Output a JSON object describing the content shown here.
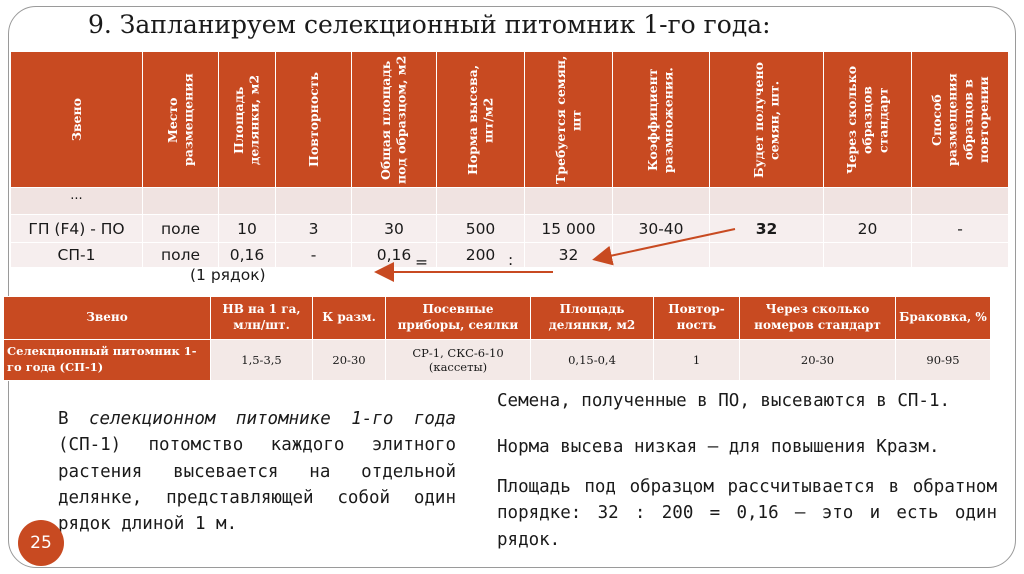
{
  "title": "9. Запланируем селекционный питомник 1-го года:",
  "table1": {
    "headers": [
      "Звено",
      "Место размещения",
      "Площадь делянки, м2",
      "Повторность",
      "Общая площадь под образцом, м2",
      "Норма высева, шт/м2",
      "Требуется семян, шт",
      "Коэффициент размножения.",
      "Будет получено семян, шт.",
      "Через сколько образцов стандарт",
      "Способ размещения образцов в повторении"
    ],
    "row0": [
      "...",
      "",
      "",
      "",
      "",
      "",
      "",
      "",
      "",
      "",
      ""
    ],
    "row1": [
      "ГП (F4) - ПО",
      "поле",
      "10",
      "3",
      "30",
      "500",
      "15 000",
      "30-40",
      "32",
      "20",
      "-"
    ],
    "row2": [
      "СП-1",
      "поле",
      "0,16",
      "-",
      "0,16",
      "200",
      "32",
      "",
      "",
      "",
      ""
    ],
    "ops": {
      "eq": "=",
      "div": ":"
    }
  },
  "note": "(1 рядок)",
  "table2": {
    "headers": [
      "Звено",
      "НВ на 1 га, млн/шт.",
      "К разм.",
      "Посевные приборы, сеялки",
      "Площадь делянки, м2",
      "Повтор-ность",
      "Через сколько номеров стандарт",
      "Браковка, %"
    ],
    "row": [
      "Селекционный питомник 1-го года (СП-1)",
      "1,5-3,5",
      "20-30",
      "СР-1, СКС-6-10 (кассеты)",
      "0,15-0,4",
      "1",
      "20-30",
      "90-95"
    ]
  },
  "left_para": {
    "pre": "В ",
    "italic": "селекционном питомнике 1-го года",
    "post": " (СП-1) потомство каждого элитного растения высевается на отдельной делянке, представляющей собой один рядок длиной 1 м."
  },
  "right": {
    "p1": "Семена, полученные в ПО, высеваются в СП-1.",
    "p2": "Норма высева низкая – для повышения Кразм.",
    "p3": "Площадь под образцом рассчитывается в обратном порядке: 32 : 200 = 0,16 – это и есть один рядок."
  },
  "page_number": "25",
  "colors": {
    "accent": "#c84a21",
    "cell": "#f0e3e1"
  }
}
